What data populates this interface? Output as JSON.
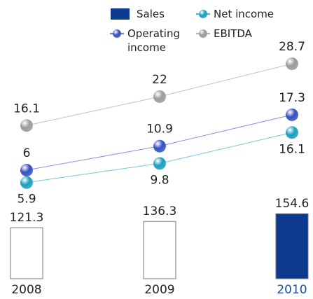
{
  "chart_data": {
    "type": "bar",
    "categories": [
      "2008",
      "2009",
      "2010"
    ],
    "category_colors": [
      "#222222",
      "#222222",
      "#1a4fa0"
    ],
    "series": [
      {
        "name": "Sales",
        "type": "bar",
        "color": "#0d3a8e",
        "bar_colors": [
          "#ffffff",
          "#ffffff",
          "#0d3a8e"
        ],
        "values": [
          121.3,
          136.3,
          154.6
        ]
      },
      {
        "name": "Net income",
        "type": "line",
        "color": "#1a9ec0",
        "values": [
          5.9,
          9.8,
          16.1
        ]
      },
      {
        "name": "Operating income",
        "type": "line",
        "color": "#3550c0",
        "values": [
          6.0,
          10.9,
          17.3
        ]
      },
      {
        "name": "EBITDA",
        "type": "line",
        "color": "#9a9a9a",
        "values": [
          16.1,
          22.0,
          28.7
        ]
      }
    ]
  }
}
